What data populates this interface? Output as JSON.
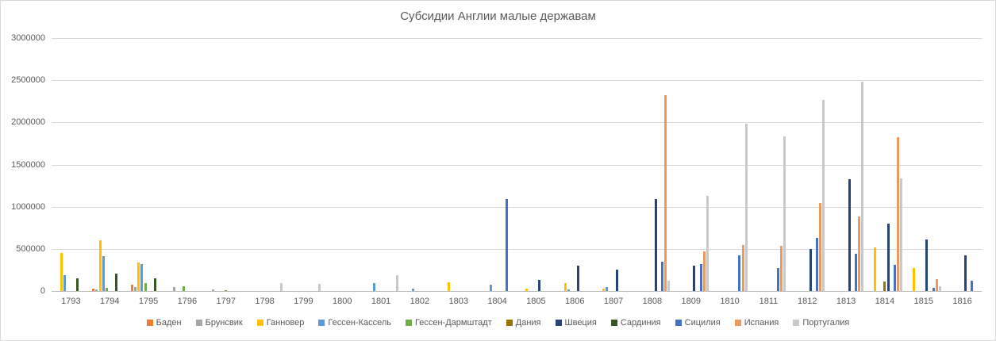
{
  "chart_data": {
    "type": "bar",
    "title": "Субсидии Англии малые державам",
    "xlabel": "",
    "ylabel": "",
    "ylim": [
      0,
      3000000
    ],
    "y_tick_step": 500000,
    "y_tick_labels": [
      "0",
      "500000",
      "1000000",
      "1500000",
      "2000000",
      "2500000",
      "3000000"
    ],
    "grid": "horizontal",
    "legend_position": "bottom",
    "categories": [
      1793,
      1794,
      1795,
      1796,
      1797,
      1798,
      1799,
      1800,
      1801,
      1802,
      1803,
      1804,
      1805,
      1806,
      1807,
      1808,
      1809,
      1810,
      1811,
      1812,
      1813,
      1814,
      1815,
      1816
    ],
    "series": [
      {
        "name": "Баден",
        "color": "#ED7D31",
        "values": [
          0,
          25000,
          75000,
          0,
          0,
          0,
          0,
          0,
          0,
          0,
          0,
          0,
          0,
          0,
          0,
          0,
          0,
          0,
          0,
          0,
          0,
          0,
          0,
          0
        ]
      },
      {
        "name": "Брунсвик",
        "color": "#A5A5A5",
        "values": [
          0,
          15000,
          50000,
          50000,
          15000,
          0,
          0,
          0,
          0,
          0,
          0,
          0,
          0,
          0,
          0,
          0,
          0,
          0,
          0,
          0,
          0,
          0,
          0,
          0
        ]
      },
      {
        "name": "Ганновер",
        "color": "#FFC000",
        "values": [
          450000,
          600000,
          340000,
          0,
          0,
          0,
          0,
          0,
          0,
          0,
          100000,
          0,
          30000,
          90000,
          25000,
          0,
          0,
          0,
          0,
          0,
          0,
          520000,
          270000,
          0
        ]
      },
      {
        "name": "Гессен-Кассель",
        "color": "#5B9BD5",
        "values": [
          190000,
          410000,
          320000,
          0,
          0,
          0,
          0,
          0,
          90000,
          30000,
          0,
          75000,
          0,
          20000,
          50000,
          0,
          0,
          0,
          0,
          0,
          0,
          0,
          0,
          0
        ]
      },
      {
        "name": "Гессен-Дармштадт",
        "color": "#70AD47",
        "values": [
          0,
          40000,
          90000,
          60000,
          0,
          0,
          0,
          0,
          0,
          0,
          0,
          0,
          0,
          0,
          0,
          0,
          0,
          0,
          0,
          0,
          0,
          0,
          0,
          0
        ]
      },
      {
        "name": "Дания",
        "color": "#997300",
        "values": [
          0,
          0,
          0,
          0,
          12000,
          0,
          0,
          0,
          0,
          0,
          0,
          0,
          0,
          0,
          0,
          0,
          0,
          0,
          0,
          0,
          0,
          110000,
          0,
          0
        ]
      },
      {
        "name": "Швеция",
        "color": "#264478",
        "values": [
          0,
          0,
          0,
          0,
          0,
          0,
          0,
          0,
          0,
          0,
          0,
          0,
          130000,
          300000,
          250000,
          1090000,
          300000,
          0,
          0,
          500000,
          1330000,
          800000,
          610000,
          420000
        ]
      },
      {
        "name": "Сардиния",
        "color": "#375623",
        "values": [
          150000,
          210000,
          150000,
          0,
          0,
          0,
          0,
          0,
          0,
          0,
          0,
          0,
          0,
          0,
          0,
          0,
          0,
          0,
          0,
          0,
          0,
          0,
          0,
          0
        ]
      },
      {
        "name": "Сицилия",
        "color": "#4472C4",
        "values": [
          0,
          0,
          0,
          0,
          0,
          0,
          0,
          0,
          0,
          0,
          0,
          1090000,
          0,
          0,
          0,
          350000,
          320000,
          420000,
          270000,
          630000,
          440000,
          310000,
          40000,
          120000
        ]
      },
      {
        "name": "Испания",
        "color": "#EF995F",
        "values": [
          0,
          0,
          0,
          0,
          0,
          0,
          0,
          0,
          0,
          0,
          0,
          0,
          0,
          0,
          0,
          2320000,
          470000,
          550000,
          540000,
          1040000,
          880000,
          1820000,
          140000,
          0
        ]
      },
      {
        "name": "Португалия",
        "color": "#C9C9C9",
        "values": [
          0,
          0,
          0,
          0,
          0,
          90000,
          80000,
          0,
          190000,
          0,
          0,
          0,
          0,
          0,
          0,
          120000,
          1130000,
          1980000,
          1830000,
          2270000,
          2480000,
          1340000,
          60000,
          0
        ]
      }
    ]
  }
}
